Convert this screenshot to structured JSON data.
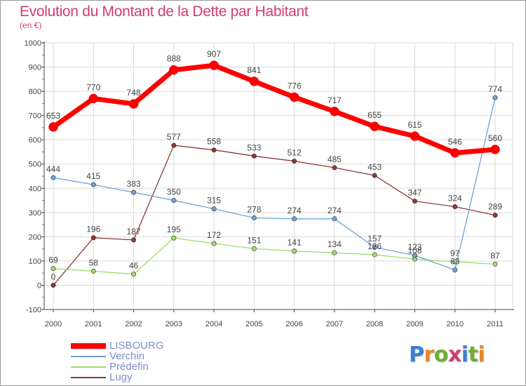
{
  "header": {
    "title": "Evolution du Montant de la Dette par Habitant",
    "subtitle": "(en €)"
  },
  "brand": {
    "text": "Proxiti",
    "letter_colors": [
      "#3a7fd5",
      "#e8872a",
      "#6cae2e",
      "#d43c6e",
      "#3a7fd5",
      "#6cae2e",
      "#e8872a"
    ]
  },
  "colors": {
    "title": "#d43c6e",
    "axis": "#444444",
    "grid": "#d9d9d9",
    "tick_marks": "#d43c6e",
    "label_text": "#444444",
    "legend_text": "#7e8ec9"
  },
  "chart_data": {
    "type": "line",
    "title": "Evolution du Montant de la Dette par Habitant",
    "subtitle": "(en €)",
    "xlabel": "",
    "ylabel": "",
    "x": [
      "2000",
      "2001",
      "2002",
      "2003",
      "2004",
      "2005",
      "2006",
      "2007",
      "2008",
      "2009",
      "2010",
      "2011"
    ],
    "ylim": [
      -100,
      1000
    ],
    "yticks": [
      -100,
      0,
      100,
      200,
      300,
      400,
      500,
      600,
      700,
      800,
      900,
      1000
    ],
    "grid": true,
    "legend_position": "bottom-left",
    "series": [
      {
        "name": "LISBOURG",
        "color": "#ff0000",
        "values": [
          653,
          770,
          748,
          888,
          907,
          841,
          776,
          717,
          655,
          615,
          546,
          560
        ]
      },
      {
        "name": "Verchin",
        "color": "#6fa2d6",
        "values": [
          444,
          415,
          383,
          350,
          315,
          278,
          274,
          274,
          157,
          123,
          63,
          774
        ]
      },
      {
        "name": "Prédefin",
        "color": "#9fdc70",
        "values": [
          69,
          58,
          46,
          195,
          172,
          151,
          141,
          134,
          126,
          108,
          97,
          87
        ]
      },
      {
        "name": "Lugy",
        "color": "#8b3a3a",
        "values": [
          0,
          196,
          187,
          577,
          558,
          533,
          512,
          485,
          453,
          347,
          324,
          289
        ]
      }
    ]
  }
}
